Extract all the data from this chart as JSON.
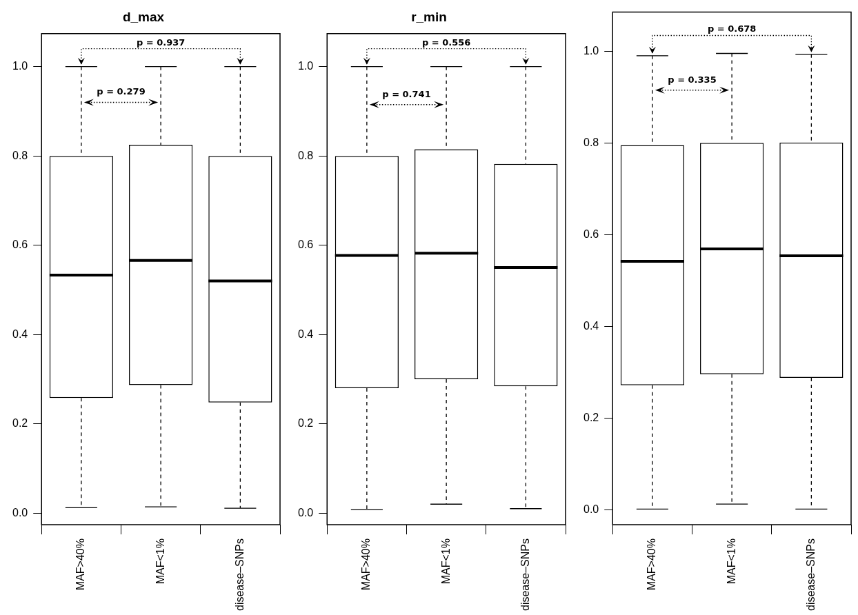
{
  "chart_data": [
    {
      "type": "box",
      "title": "d_max",
      "categories": [
        "MAF>40%",
        "MAF<1%",
        "disease–SNPs"
      ],
      "boxes": [
        {
          "low": 0.012,
          "q1": 0.258,
          "median": 0.533,
          "q3": 0.8,
          "high": 1.0
        },
        {
          "low": 0.014,
          "q1": 0.287,
          "median": 0.566,
          "q3": 0.825,
          "high": 1.0
        },
        {
          "low": 0.011,
          "q1": 0.248,
          "median": 0.52,
          "q3": 0.8,
          "high": 1.0
        }
      ],
      "ylim": [
        -0.026,
        1.074
      ],
      "yticks": [
        {
          "value": 0,
          "label": "0.0"
        },
        {
          "value": 0.2,
          "label": "0.2"
        },
        {
          "value": 0.4,
          "label": "0.4"
        },
        {
          "value": 0.6,
          "label": "0.6"
        },
        {
          "value": 0.8,
          "label": "0.8"
        },
        {
          "value": 1,
          "label": "1.0"
        }
      ],
      "grid": false,
      "annotations": [
        "p = 0.937",
        {
          "text": "p = 0.279",
          "x": "MAF<1%",
          "y": 0.92
        }
      ]
    },
    {
      "type": "box",
      "title": "r_min",
      "categories": [
        "MAF>40%",
        "MAF<1%",
        "disease–SNPs"
      ],
      "boxes": [
        {
          "low": 0.008,
          "q1": 0.28,
          "median": 0.577,
          "q3": 0.8,
          "high": 1.0
        },
        {
          "low": 0.02,
          "q1": 0.3,
          "median": 0.582,
          "q3": 0.815,
          "high": 1.0
        },
        {
          "low": 0.01,
          "q1": 0.284,
          "median": 0.55,
          "q3": 0.782,
          "high": 1.0
        }
      ],
      "ylim": [
        -0.026,
        1.074
      ],
      "yticks": [
        {
          "value": 0,
          "label": "0.0"
        },
        {
          "value": 0.2,
          "label": "0.2"
        },
        {
          "value": 0.4,
          "label": "0.4"
        },
        {
          "value": 0.6,
          "label": "0.6"
        },
        {
          "value": 0.8,
          "label": "0.8"
        },
        {
          "value": 1,
          "label": "1.0"
        }
      ],
      "grid": false,
      "annotations": [
        "p = 0.556",
        {
          "text": "p = 0.741",
          "x": "MAF<1%",
          "y": 0.915
        }
      ]
    },
    {
      "type": "box",
      "categories": [
        "MAF>40%",
        "MAF<1%",
        "disease–SNPs"
      ],
      "boxes": [
        {
          "low": 0.002,
          "q1": 0.272,
          "median": 0.542,
          "q3": 0.795,
          "high": 0.99
        },
        {
          "low": 0.013,
          "q1": 0.296,
          "median": 0.569,
          "q3": 0.8,
          "high": 0.995
        },
        {
          "low": 0.002,
          "q1": 0.288,
          "median": 0.554,
          "q3": 0.801,
          "high": 0.993
        }
      ],
      "ylim": [
        -0.032,
        1.085
      ],
      "yticks": [
        {
          "value": 0,
          "label": "0.0"
        },
        {
          "value": 0.2,
          "label": "0.2"
        },
        {
          "value": 0.4,
          "label": "0.4"
        },
        {
          "value": 0.6,
          "label": "0.6"
        },
        {
          "value": 0.8,
          "label": "0.8"
        },
        {
          "value": 1,
          "label": "1.0"
        }
      ],
      "grid": false,
      "annotations": [
        "p = 0.678",
        {
          "text": "p = 0.335",
          "x": "MAF<1%",
          "y": 0.915
        }
      ]
    }
  ]
}
